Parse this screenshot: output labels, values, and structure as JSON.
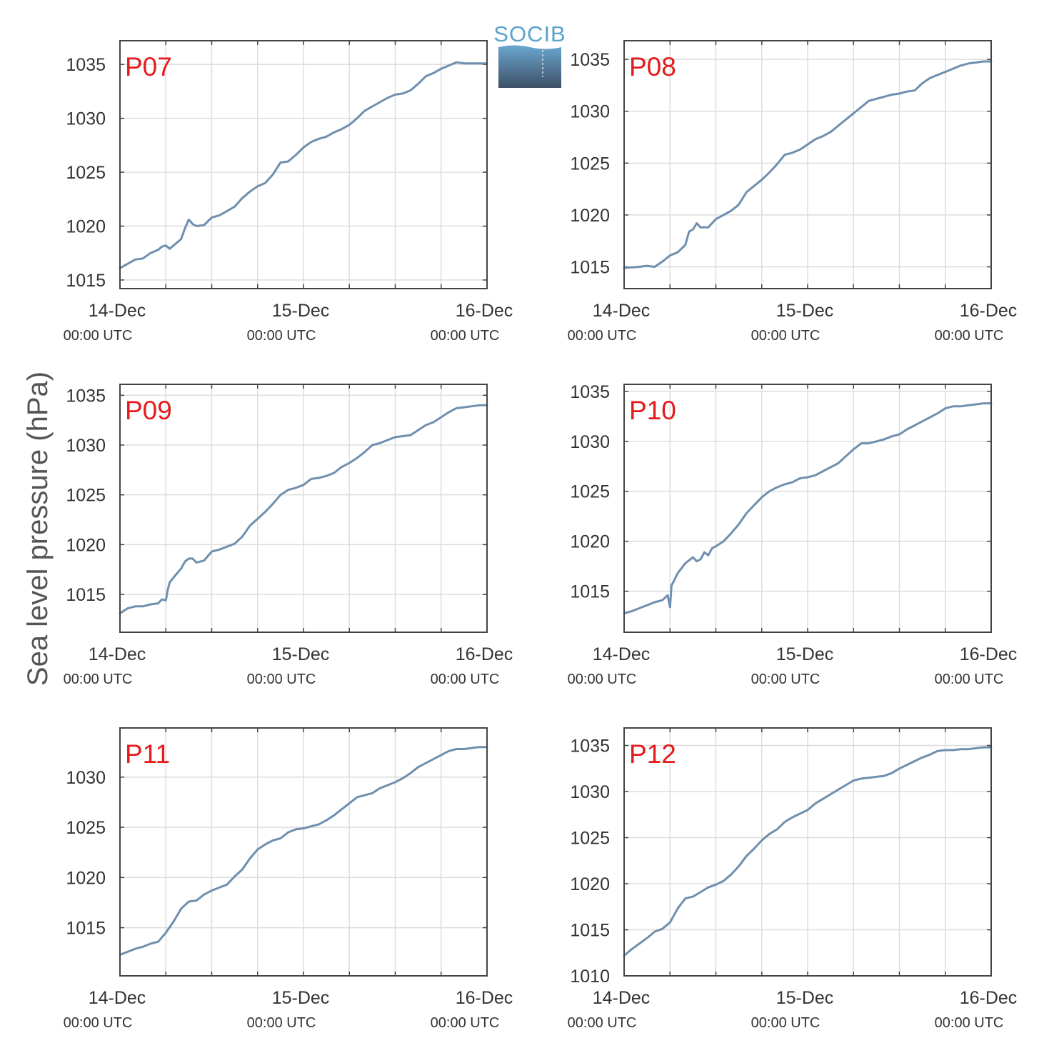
{
  "figure": {
    "ylabel": "Sea level pressure (hPa)",
    "logo_text": "SOCIB",
    "colors": {
      "line": "#6f8fae",
      "grid": "#dddddd",
      "axis": "#444444",
      "panel_tag": "#e41a1c",
      "logo_text": "#5aa3cc",
      "logo_top": "#6aa7cf",
      "logo_bottom": "#3e5066"
    }
  },
  "chart_data": [
    {
      "type": "line",
      "panel": "P07",
      "x_ticks": [
        {
          "date": "14-Dec",
          "time": "00:00 UTC"
        },
        {
          "date": "15-Dec",
          "time": "00:00 UTC"
        },
        {
          "date": "16-Dec",
          "time": "00:00 UTC"
        }
      ],
      "xlim": [
        0,
        48
      ],
      "ylim": [
        1014.2,
        1037.2
      ],
      "yticks": [
        1015,
        1020,
        1025,
        1030,
        1035
      ],
      "grid": true,
      "x": [
        0,
        1,
        2,
        3,
        4,
        5,
        5.5,
        6,
        6.5,
        7,
        8,
        8.5,
        9,
        9.5,
        10,
        11,
        12,
        13,
        14,
        15,
        16,
        17,
        18,
        19,
        20,
        21,
        22,
        23,
        24,
        25,
        26,
        27,
        28,
        29,
        30,
        31,
        32,
        33,
        34,
        35,
        36,
        37,
        38,
        39,
        40,
        41,
        42,
        43,
        44,
        45,
        46,
        47,
        48
      ],
      "values": [
        1016.1,
        1016.5,
        1016.9,
        1017.0,
        1017.5,
        1017.8,
        1018.1,
        1018.2,
        1017.9,
        1018.2,
        1018.8,
        1019.8,
        1020.6,
        1020.2,
        1020.0,
        1020.1,
        1020.8,
        1021.0,
        1021.4,
        1021.8,
        1022.6,
        1023.2,
        1023.7,
        1024.0,
        1024.8,
        1025.9,
        1026.0,
        1026.6,
        1027.3,
        1027.8,
        1028.1,
        1028.3,
        1028.7,
        1029.0,
        1029.4,
        1030.0,
        1030.7,
        1031.1,
        1031.5,
        1031.9,
        1032.2,
        1032.3,
        1032.6,
        1033.2,
        1033.9,
        1034.2,
        1034.6,
        1034.9,
        1035.2,
        1035.1,
        1035.1,
        1035.1,
        1035.1
      ],
      "series": [
        {
          "color": "#6f8fae"
        }
      ]
    },
    {
      "type": "line",
      "panel": "P08",
      "x_ticks": [
        {
          "date": "14-Dec",
          "time": "00:00 UTC"
        },
        {
          "date": "15-Dec",
          "time": "00:00 UTC"
        },
        {
          "date": "16-Dec",
          "time": "00:00 UTC"
        }
      ],
      "xlim": [
        0,
        48
      ],
      "ylim": [
        1012.9,
        1036.8
      ],
      "yticks": [
        1015,
        1020,
        1025,
        1030,
        1035
      ],
      "grid": true,
      "x": [
        0,
        2,
        3,
        4,
        5,
        6,
        7,
        8,
        8.5,
        9,
        9.5,
        10,
        11,
        12,
        13,
        14,
        15,
        16,
        17,
        18,
        19,
        20,
        21,
        22,
        23,
        24,
        25,
        26,
        27,
        28,
        29,
        30,
        31,
        32,
        33,
        34,
        35,
        36,
        37,
        38,
        39,
        40,
        41,
        42,
        43,
        44,
        45,
        46,
        47,
        48
      ],
      "values": [
        1014.9,
        1015.0,
        1015.1,
        1015.0,
        1015.5,
        1016.1,
        1016.4,
        1017.1,
        1018.4,
        1018.6,
        1019.2,
        1018.8,
        1018.8,
        1019.6,
        1020.0,
        1020.4,
        1021.0,
        1022.2,
        1022.8,
        1023.4,
        1024.1,
        1024.9,
        1025.8,
        1026.0,
        1026.3,
        1026.8,
        1027.3,
        1027.6,
        1028.0,
        1028.6,
        1029.2,
        1029.8,
        1030.4,
        1031.0,
        1031.2,
        1031.4,
        1031.6,
        1031.7,
        1031.9,
        1032.0,
        1032.7,
        1033.2,
        1033.5,
        1033.8,
        1034.1,
        1034.4,
        1034.6,
        1034.7,
        1034.8,
        1034.8
      ],
      "series": [
        {
          "color": "#6f8fae"
        }
      ]
    },
    {
      "type": "line",
      "panel": "P09",
      "x_ticks": [
        {
          "date": "14-Dec",
          "time": "00:00 UTC"
        },
        {
          "date": "15-Dec",
          "time": "00:00 UTC"
        },
        {
          "date": "16-Dec",
          "time": "00:00 UTC"
        }
      ],
      "xlim": [
        0,
        48
      ],
      "ylim": [
        1011.2,
        1036.1
      ],
      "yticks": [
        1015,
        1020,
        1025,
        1030,
        1035
      ],
      "grid": true,
      "x": [
        0,
        1,
        2,
        3,
        4,
        5,
        5.5,
        6,
        6.2,
        6.5,
        7,
        8,
        8.5,
        9,
        9.5,
        10,
        11,
        12,
        13,
        14,
        15,
        16,
        17,
        18,
        19,
        20,
        21,
        22,
        23,
        24,
        25,
        26,
        27,
        28,
        29,
        30,
        31,
        32,
        33,
        34,
        35,
        36,
        37,
        38,
        39,
        40,
        41,
        42,
        43,
        44,
        45,
        46,
        47,
        48
      ],
      "values": [
        1013.1,
        1013.6,
        1013.8,
        1013.8,
        1014.0,
        1014.1,
        1014.5,
        1014.4,
        1015.3,
        1016.2,
        1016.7,
        1017.6,
        1018.3,
        1018.6,
        1018.6,
        1018.2,
        1018.4,
        1019.3,
        1019.5,
        1019.8,
        1020.1,
        1020.8,
        1021.9,
        1022.6,
        1023.3,
        1024.1,
        1025.0,
        1025.5,
        1025.7,
        1026.0,
        1026.6,
        1026.7,
        1026.9,
        1027.2,
        1027.8,
        1028.2,
        1028.7,
        1029.3,
        1030.0,
        1030.2,
        1030.5,
        1030.8,
        1030.9,
        1031.0,
        1031.5,
        1032.0,
        1032.3,
        1032.8,
        1033.3,
        1033.7,
        1033.8,
        1033.9,
        1034.0,
        1034.0
      ],
      "series": [
        {
          "color": "#6f8fae"
        }
      ]
    },
    {
      "type": "line",
      "panel": "P10",
      "x_ticks": [
        {
          "date": "14-Dec",
          "time": "00:00 UTC"
        },
        {
          "date": "15-Dec",
          "time": "00:00 UTC"
        },
        {
          "date": "16-Dec",
          "time": "00:00 UTC"
        }
      ],
      "xlim": [
        0,
        48
      ],
      "ylim": [
        1010.9,
        1035.7
      ],
      "yticks": [
        1015,
        1020,
        1025,
        1030,
        1035
      ],
      "grid": true,
      "x": [
        0,
        1,
        2,
        3,
        4,
        5,
        5.7,
        6,
        6.2,
        6.5,
        7,
        8,
        9,
        9.5,
        10,
        10.5,
        11,
        11.5,
        12,
        13,
        14,
        15,
        16,
        17,
        18,
        19,
        20,
        21,
        22,
        23,
        24,
        25,
        26,
        27,
        28,
        29,
        30,
        31,
        32,
        33,
        34,
        35,
        36,
        37,
        38,
        39,
        40,
        41,
        42,
        43,
        44,
        45,
        46,
        47,
        48
      ],
      "values": [
        1012.8,
        1013.0,
        1013.3,
        1013.6,
        1013.9,
        1014.1,
        1014.6,
        1013.4,
        1015.6,
        1016.0,
        1016.8,
        1017.8,
        1018.4,
        1018.0,
        1018.2,
        1018.9,
        1018.6,
        1019.3,
        1019.5,
        1020.0,
        1020.8,
        1021.7,
        1022.8,
        1023.6,
        1024.4,
        1025.0,
        1025.4,
        1025.7,
        1025.9,
        1026.3,
        1026.4,
        1026.6,
        1027.0,
        1027.4,
        1027.8,
        1028.5,
        1029.2,
        1029.8,
        1029.8,
        1030.0,
        1030.2,
        1030.5,
        1030.7,
        1031.2,
        1031.6,
        1032.0,
        1032.4,
        1032.8,
        1033.3,
        1033.5,
        1033.5,
        1033.6,
        1033.7,
        1033.8,
        1033.8
      ],
      "series": [
        {
          "color": "#6f8fae"
        }
      ]
    },
    {
      "type": "line",
      "panel": "P11",
      "x_ticks": [
        {
          "date": "14-Dec",
          "time": "00:00 UTC"
        },
        {
          "date": "15-Dec",
          "time": "00:00 UTC"
        },
        {
          "date": "16-Dec",
          "time": "00:00 UTC"
        }
      ],
      "xlim": [
        0,
        48
      ],
      "ylim": [
        1010.2,
        1034.9
      ],
      "yticks": [
        1015,
        1020,
        1025,
        1030
      ],
      "grid": true,
      "x": [
        0,
        1,
        2,
        3,
        4,
        5,
        6,
        7,
        8,
        9,
        10,
        11,
        12,
        13,
        14,
        15,
        16,
        17,
        18,
        19,
        20,
        21,
        22,
        23,
        24,
        25,
        26,
        27,
        28,
        29,
        30,
        31,
        32,
        33,
        34,
        35,
        36,
        37,
        38,
        39,
        40,
        41,
        42,
        43,
        44,
        45,
        46,
        47,
        48
      ],
      "values": [
        1012.3,
        1012.6,
        1012.9,
        1013.1,
        1013.4,
        1013.6,
        1014.5,
        1015.6,
        1016.9,
        1017.6,
        1017.7,
        1018.3,
        1018.7,
        1019.0,
        1019.3,
        1020.1,
        1020.8,
        1021.9,
        1022.8,
        1023.3,
        1023.7,
        1023.9,
        1024.5,
        1024.8,
        1024.9,
        1025.1,
        1025.3,
        1025.7,
        1026.2,
        1026.8,
        1027.4,
        1028.0,
        1028.2,
        1028.4,
        1028.9,
        1029.2,
        1029.5,
        1029.9,
        1030.4,
        1031.0,
        1031.4,
        1031.8,
        1032.2,
        1032.6,
        1032.8,
        1032.8,
        1032.9,
        1033.0,
        1033.0
      ],
      "series": [
        {
          "color": "#6f8fae"
        }
      ]
    },
    {
      "type": "line",
      "panel": "P12",
      "x_ticks": [
        {
          "date": "14-Dec",
          "time": "00:00 UTC"
        },
        {
          "date": "15-Dec",
          "time": "00:00 UTC"
        },
        {
          "date": "16-Dec",
          "time": "00:00 UTC"
        }
      ],
      "xlim": [
        0,
        48
      ],
      "ylim": [
        1010,
        1036.9
      ],
      "yticks": [
        1010,
        1015,
        1020,
        1025,
        1030,
        1035
      ],
      "grid": true,
      "x": [
        0,
        1,
        2,
        3,
        4,
        5,
        6,
        7,
        8,
        9,
        10,
        11,
        12,
        13,
        14,
        15,
        16,
        17,
        18,
        19,
        20,
        21,
        22,
        23,
        24,
        25,
        26,
        27,
        28,
        29,
        30,
        31,
        32,
        33,
        34,
        35,
        36,
        37,
        38,
        39,
        40,
        41,
        42,
        43,
        44,
        45,
        46,
        47,
        48
      ],
      "values": [
        1012.2,
        1012.9,
        1013.5,
        1014.1,
        1014.8,
        1015.1,
        1015.8,
        1017.3,
        1018.4,
        1018.6,
        1019.1,
        1019.6,
        1019.9,
        1020.3,
        1021.0,
        1021.9,
        1023.0,
        1023.8,
        1024.7,
        1025.4,
        1025.9,
        1026.7,
        1027.2,
        1027.6,
        1028.0,
        1028.7,
        1029.2,
        1029.7,
        1030.2,
        1030.7,
        1031.2,
        1031.4,
        1031.5,
        1031.6,
        1031.7,
        1032.0,
        1032.5,
        1032.9,
        1033.3,
        1033.7,
        1034.0,
        1034.4,
        1034.5,
        1034.5,
        1034.6,
        1034.6,
        1034.7,
        1034.8,
        1034.8
      ],
      "series": [
        {
          "color": "#6f8fae"
        }
      ]
    }
  ]
}
